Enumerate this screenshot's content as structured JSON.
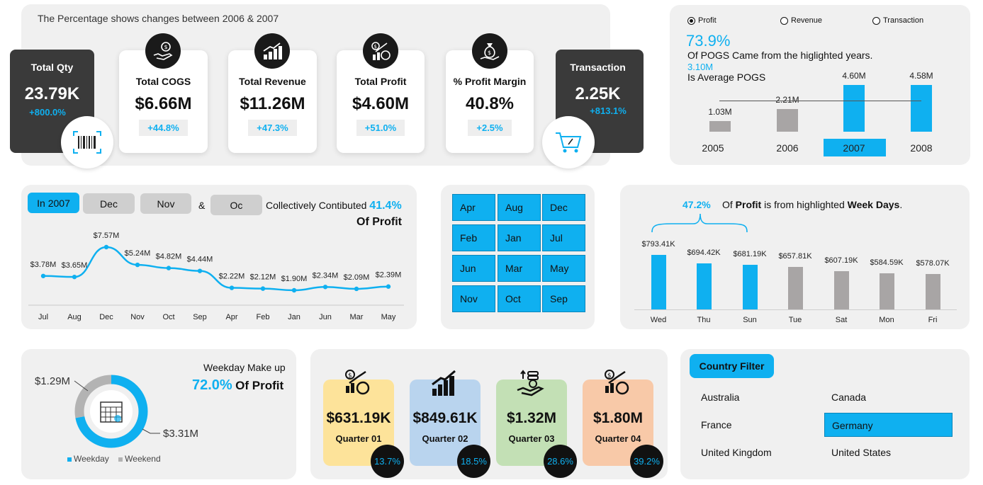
{
  "header": {
    "note": "The Percentage shows changes between 2006 & 2007"
  },
  "kpis": {
    "total_qty": {
      "title": "Total Qty",
      "value": "23.79K",
      "change": "+800.0%"
    },
    "total_cogs": {
      "title": "Total COGS",
      "value": "$6.66M",
      "change": "+44.8%"
    },
    "total_revenue": {
      "title": "Total Revenue",
      "value": "$11.26M",
      "change": "+47.3%"
    },
    "total_profit": {
      "title": "Total Profit",
      "value": "$4.60M",
      "change": "+51.0%"
    },
    "profit_margin": {
      "title": "% Profit Margin",
      "value": "40.8%",
      "change": "+2.5%"
    },
    "transaction": {
      "title": "Transaction",
      "value": "2.25K",
      "change": "+813.1%"
    },
    "icons": [
      "barcode-icon",
      "money-hand-icon",
      "growth-bars-icon",
      "profit-chart-icon",
      "money-bag-icon",
      "shopping-cart-icon"
    ]
  },
  "year_panel": {
    "options": [
      "Profit",
      "Revenue",
      "Transaction"
    ],
    "selected_option": "Profit",
    "pct": "73.9%",
    "line1": "Of  POGS Came from the higlighted years.",
    "avg_value": "3.10M",
    "avg_label": "Is Average  POGS",
    "chart_data": {
      "type": "bar",
      "categories": [
        "2005",
        "2006",
        "2007",
        "2008"
      ],
      "values": [
        1.03,
        2.21,
        4.6,
        4.58
      ],
      "value_labels": [
        "1.03M",
        "2.21M",
        "4.60M",
        "4.58M"
      ],
      "highlighted": [
        "2007",
        "2008"
      ],
      "reference_line": 3.1,
      "selected_year": "2007"
    }
  },
  "month_panel": {
    "filters": [
      "In 2007",
      "Dec",
      "Nov",
      "&",
      "Oc"
    ],
    "text": "Collectively Contibuted",
    "pct": "41.4%",
    "suffix": "Of Profit",
    "chart_data": {
      "type": "line",
      "categories": [
        "Jul",
        "Aug",
        "Dec",
        "Nov",
        "Oct",
        "Sep",
        "Apr",
        "Feb",
        "Jan",
        "Jun",
        "Mar",
        "May"
      ],
      "values": [
        3.78,
        3.65,
        7.57,
        5.24,
        4.82,
        4.44,
        2.22,
        2.12,
        1.9,
        2.34,
        2.09,
        2.39
      ],
      "value_labels": [
        "$3.78M",
        "$3.65M",
        "$7.57M",
        "$5.24M",
        "$4.82M",
        "$4.44M",
        "$2.22M",
        "$2.12M",
        "$1.90M",
        "$2.34M",
        "$2.09M",
        "$2.39M"
      ]
    }
  },
  "month_slicer": [
    "Apr",
    "Aug",
    "Dec",
    "Feb",
    "Jan",
    "Jul",
    "Jun",
    "Mar",
    "May",
    "Nov",
    "Oct",
    "Sep"
  ],
  "weekday_panel": {
    "pct": "47.2%",
    "text_pre": "Of",
    "text_bold1": "Profit",
    "text_mid": "is from highlighted",
    "text_bold2": "Week Days",
    "text_end": ".",
    "chart_data": {
      "type": "bar",
      "categories": [
        "Wed",
        "Thu",
        "Sun",
        "Tue",
        "Sat",
        "Mon",
        "Fri"
      ],
      "values": [
        793.41,
        694.42,
        681.19,
        657.81,
        607.19,
        584.59,
        578.07
      ],
      "value_labels": [
        "$793.41K",
        "$694.42K",
        "$681.19K",
        "$657.81K",
        "$607.19K",
        "$584.59K",
        "$578.07K"
      ],
      "highlighted": [
        "Wed",
        "Thu",
        "Sun"
      ]
    }
  },
  "donut_panel": {
    "title": "Weekday Make up",
    "pct": "72.0%",
    "suffix": "Of Profit",
    "chart_data": {
      "type": "pie",
      "labels": [
        "Weekday",
        "Weekend"
      ],
      "values": [
        3.31,
        1.29
      ],
      "value_labels": [
        "$3.31M",
        "$1.29M"
      ]
    },
    "legend": [
      "Weekday",
      "Weekend"
    ],
    "colors": {
      "weekday": "#0fb0f0",
      "weekend": "#b3b3b3"
    }
  },
  "quarters": [
    {
      "value": "$631.19K",
      "label": "Quarter 01",
      "pct": "13.7%",
      "color": "#fde39a",
      "icon": "profit-chart-icon"
    },
    {
      "value": "$849.61K",
      "label": "Quarter 02",
      "pct": "18.5%",
      "color": "#b9d4ee",
      "icon": "growth-bars-icon"
    },
    {
      "value": "$1.32M",
      "label": "Quarter 03",
      "pct": "28.6%",
      "color": "#c3e0b5",
      "icon": "money-hand-icon"
    },
    {
      "value": "$1.80M",
      "label": "Quarter 04",
      "pct": "39.2%",
      "color": "#f8c9a8",
      "icon": "profit-chart-icon"
    }
  ],
  "country_filter": {
    "title": "Country Filter",
    "items": [
      "Australia",
      "Canada",
      "France",
      "Germany",
      "United Kingdom",
      "United States"
    ],
    "selected": "Germany"
  },
  "colors": {
    "accent": "#0fb0f0",
    "muted_bar": "#a8a5a5",
    "panel": "#f0f0f0",
    "dark_card": "#3a3a3a"
  }
}
